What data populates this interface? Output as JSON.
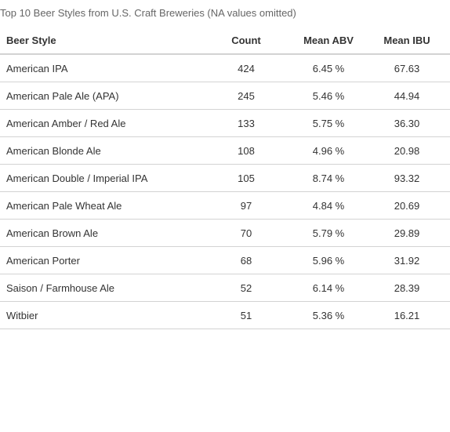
{
  "caption": "Top 10 Beer Styles from U.S. Craft Breweries (NA values omitted)",
  "table": {
    "headers": {
      "style": "Beer Style",
      "count": "Count",
      "abv": "Mean ABV",
      "ibu": "Mean IBU"
    },
    "rows": [
      {
        "style": "American IPA",
        "count": "424",
        "abv": "6.45 %",
        "ibu": "67.63"
      },
      {
        "style": "American Pale Ale (APA)",
        "count": "245",
        "abv": "5.46 %",
        "ibu": "44.94"
      },
      {
        "style": "American Amber / Red Ale",
        "count": "133",
        "abv": "5.75 %",
        "ibu": "36.30"
      },
      {
        "style": "American Blonde Ale",
        "count": "108",
        "abv": "4.96 %",
        "ibu": "20.98"
      },
      {
        "style": "American Double / Imperial IPA",
        "count": "105",
        "abv": "8.74 %",
        "ibu": "93.32"
      },
      {
        "style": "American Pale Wheat Ale",
        "count": "97",
        "abv": "4.84 %",
        "ibu": "20.69"
      },
      {
        "style": "American Brown Ale",
        "count": "70",
        "abv": "5.79 %",
        "ibu": "29.89"
      },
      {
        "style": "American Porter",
        "count": "68",
        "abv": "5.96 %",
        "ibu": "31.92"
      },
      {
        "style": "Saison / Farmhouse Ale",
        "count": "52",
        "abv": "6.14 %",
        "ibu": "28.39"
      },
      {
        "style": "Witbier",
        "count": "51",
        "abv": "5.36 %",
        "ibu": "16.21"
      }
    ]
  }
}
